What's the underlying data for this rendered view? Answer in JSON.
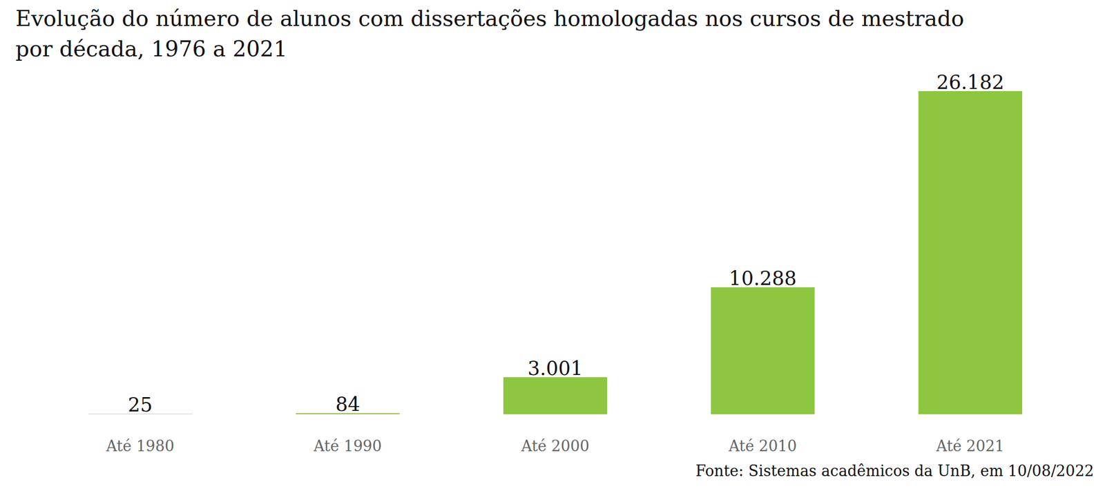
{
  "chart_data": {
    "type": "bar",
    "title": "Evolução do número de alunos com dissertações homologadas nos cursos de mestrado\npor década, 1976 a 2021",
    "categories": [
      "Até 1980",
      "Até 1990",
      "Até 2000",
      "Até 2010",
      "Até 2021"
    ],
    "values": [
      25,
      84,
      3001,
      10288,
      26182
    ],
    "value_labels": [
      "25",
      "84",
      "3.001",
      "10.288",
      "26.182"
    ],
    "color": "#8dc63f",
    "ylim": [
      0,
      26182
    ],
    "data_labels": true,
    "tick_labels": "x",
    "grid": false,
    "source": "Fonte: Sistemas acadêmicos da UnB, em 10/08/2022"
  }
}
